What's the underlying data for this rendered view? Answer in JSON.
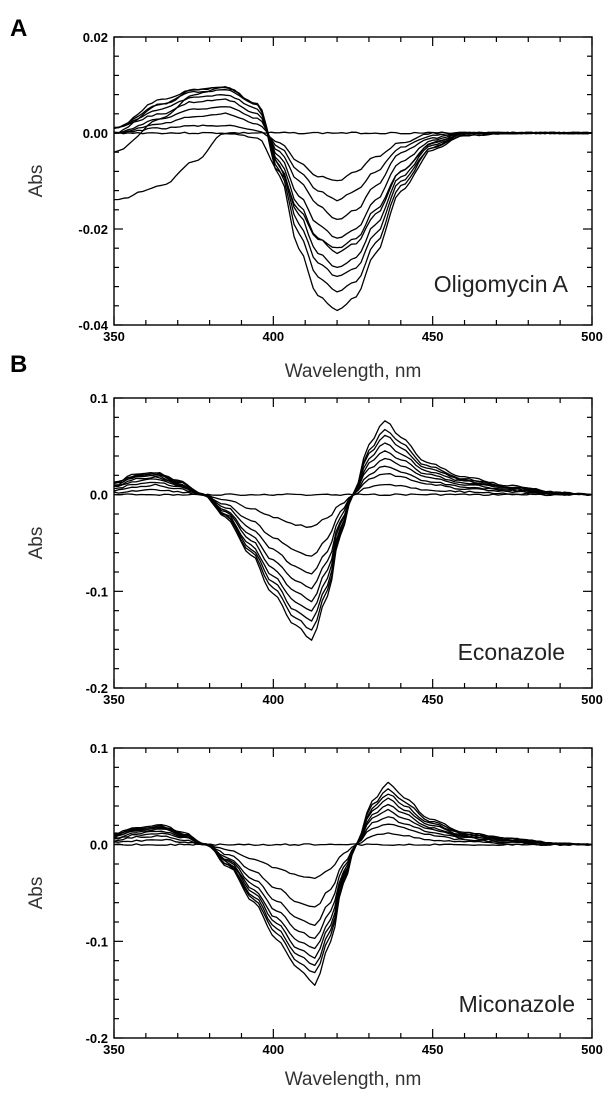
{
  "chart_data": [
    {
      "panel": "A",
      "type": "line",
      "annotation": "Oligomycin A",
      "xlabel": "Wavelength, nm",
      "ylabel": "Abs",
      "xlim": [
        350,
        500
      ],
      "ylim": [
        -0.04,
        0.02
      ],
      "xticks": [
        "350",
        "400",
        "450",
        "500"
      ],
      "yticks": [
        "0.02",
        "0.00",
        "-0.02",
        "-0.04"
      ],
      "x": [
        350,
        365,
        375,
        385,
        395,
        402,
        408,
        414,
        420,
        426,
        432,
        440,
        450,
        460,
        475,
        500
      ],
      "series": [
        {
          "values": [
            0.0,
            0.0,
            0.0,
            0.0,
            0.0,
            0.0,
            0.0,
            0.0,
            0.0,
            0.0,
            0.0,
            0.0,
            0.0,
            0.0,
            0.0,
            0.0
          ]
        },
        {
          "values": [
            0.0,
            0.001,
            0.0015,
            0.0015,
            0.0005,
            -0.002,
            -0.006,
            -0.009,
            -0.01,
            -0.008,
            -0.005,
            -0.002,
            0.0,
            0.0,
            0.0,
            0.0
          ]
        },
        {
          "values": [
            0.0,
            0.002,
            0.0035,
            0.004,
            0.002,
            -0.003,
            -0.008,
            -0.012,
            -0.014,
            -0.012,
            -0.008,
            -0.003,
            -0.0005,
            0.0,
            0.0,
            0.0
          ]
        },
        {
          "values": [
            0.0,
            0.003,
            0.005,
            0.0055,
            0.003,
            -0.004,
            -0.01,
            -0.015,
            -0.018,
            -0.016,
            -0.011,
            -0.004,
            -0.001,
            0.0,
            0.0,
            0.0
          ]
        },
        {
          "values": [
            0.001,
            0.004,
            0.0065,
            0.007,
            0.004,
            -0.005,
            -0.013,
            -0.019,
            -0.022,
            -0.02,
            -0.014,
            -0.006,
            -0.0015,
            0.0,
            0.0,
            0.0
          ]
        },
        {
          "values": [
            0.001,
            0.005,
            0.0075,
            0.008,
            0.005,
            -0.006,
            -0.015,
            -0.022,
            -0.025,
            -0.023,
            -0.017,
            -0.008,
            -0.002,
            0.0,
            0.0,
            0.0
          ]
        },
        {
          "values": [
            0.001,
            0.006,
            0.0085,
            0.009,
            0.006,
            -0.007,
            -0.017,
            -0.025,
            -0.028,
            -0.026,
            -0.019,
            -0.009,
            -0.0025,
            0.0,
            0.0,
            0.0
          ]
        },
        {
          "values": [
            0.001,
            0.007,
            0.009,
            0.0095,
            0.006,
            -0.007,
            -0.019,
            -0.027,
            -0.03,
            -0.028,
            -0.021,
            -0.01,
            -0.003,
            0.0,
            0.0,
            0.0
          ]
        },
        {
          "values": [
            0.0,
            0.006,
            0.009,
            0.0095,
            0.006,
            -0.008,
            -0.021,
            -0.03,
            -0.033,
            -0.031,
            -0.023,
            -0.011,
            -0.003,
            -0.0005,
            0.0,
            0.0
          ]
        },
        {
          "values": [
            -0.004,
            0.003,
            0.008,
            0.0095,
            0.006,
            -0.009,
            -0.024,
            -0.034,
            -0.037,
            -0.034,
            -0.025,
            -0.012,
            -0.0035,
            -0.0005,
            0.0,
            0.0
          ]
        },
        {
          "values": [
            -0.014,
            -0.011,
            -0.006,
            0.0,
            -0.001,
            -0.008,
            -0.016,
            -0.022,
            -0.024,
            -0.022,
            -0.016,
            -0.008,
            -0.002,
            0.0,
            0.0,
            0.0
          ]
        }
      ]
    },
    {
      "panel": "B",
      "type": "line",
      "annotation": "Econazole",
      "xlabel": "",
      "ylabel": "Abs",
      "xlim": [
        350,
        500
      ],
      "ylim": [
        -0.2,
        0.1
      ],
      "xticks": [
        "350",
        "400",
        "450",
        "500"
      ],
      "yticks": [
        "0.1",
        "0.0",
        "-0.1",
        "-0.2"
      ],
      "x": [
        350,
        357,
        363,
        370,
        378,
        385,
        393,
        400,
        407,
        412,
        417,
        421,
        425,
        430,
        435,
        440,
        448,
        460,
        475,
        490,
        500
      ],
      "series": [
        {
          "values": [
            0.0,
            0.0,
            0.0,
            0.0,
            0.0,
            0.0,
            0.0,
            0.0,
            0.0,
            0.0,
            0.0,
            0.0,
            0.0,
            0.0,
            0.0,
            0.0,
            0.0,
            0.0,
            0.0,
            0.0,
            0.0
          ]
        },
        {
          "values": [
            0.002,
            0.004,
            0.005,
            0.003,
            0.0,
            -0.005,
            -0.014,
            -0.023,
            -0.031,
            -0.034,
            -0.024,
            -0.01,
            0.0,
            0.008,
            0.011,
            0.009,
            0.005,
            0.003,
            0.001,
            0.0,
            0.0
          ]
        },
        {
          "values": [
            0.004,
            0.008,
            0.01,
            0.006,
            0.0,
            -0.01,
            -0.027,
            -0.044,
            -0.058,
            -0.064,
            -0.045,
            -0.018,
            0.0,
            0.016,
            0.022,
            0.018,
            0.011,
            0.006,
            0.003,
            0.001,
            0.0
          ]
        },
        {
          "values": [
            0.006,
            0.011,
            0.013,
            0.008,
            0.0,
            -0.013,
            -0.035,
            -0.057,
            -0.075,
            -0.082,
            -0.058,
            -0.023,
            0.0,
            0.021,
            0.03,
            0.024,
            0.014,
            0.008,
            0.004,
            0.001,
            0.0
          ]
        },
        {
          "values": [
            0.008,
            0.014,
            0.016,
            0.01,
            0.0,
            -0.016,
            -0.042,
            -0.068,
            -0.089,
            -0.097,
            -0.069,
            -0.028,
            0.0,
            0.027,
            0.038,
            0.03,
            0.018,
            0.01,
            0.005,
            0.001,
            0.0
          ]
        },
        {
          "values": [
            0.009,
            0.016,
            0.018,
            0.011,
            0.0,
            -0.018,
            -0.047,
            -0.077,
            -0.101,
            -0.11,
            -0.078,
            -0.031,
            0.0,
            0.032,
            0.046,
            0.036,
            0.021,
            0.012,
            0.006,
            0.002,
            0.0
          ]
        },
        {
          "values": [
            0.01,
            0.018,
            0.02,
            0.012,
            0.0,
            -0.02,
            -0.052,
            -0.085,
            -0.111,
            -0.121,
            -0.086,
            -0.034,
            0.0,
            0.037,
            0.054,
            0.042,
            0.024,
            0.014,
            0.007,
            0.002,
            0.0
          ]
        },
        {
          "values": [
            0.011,
            0.019,
            0.021,
            0.013,
            0.0,
            -0.021,
            -0.056,
            -0.091,
            -0.12,
            -0.131,
            -0.093,
            -0.037,
            0.0,
            0.042,
            0.062,
            0.048,
            0.027,
            0.015,
            0.007,
            0.002,
            0.0
          ]
        },
        {
          "values": [
            0.012,
            0.02,
            0.022,
            0.014,
            0.0,
            -0.022,
            -0.059,
            -0.097,
            -0.127,
            -0.14,
            -0.099,
            -0.04,
            0.0,
            0.046,
            0.068,
            0.053,
            0.03,
            0.016,
            0.008,
            0.002,
            0.0
          ]
        },
        {
          "values": [
            0.013,
            0.021,
            0.023,
            0.015,
            0.0,
            -0.023,
            -0.062,
            -0.103,
            -0.135,
            -0.15,
            -0.105,
            -0.042,
            0.0,
            0.051,
            0.077,
            0.06,
            0.033,
            0.018,
            0.009,
            0.002,
            0.0
          ]
        }
      ]
    },
    {
      "panel": "",
      "type": "line",
      "annotation": "Miconazole",
      "xlabel": "Wavelength, nm",
      "ylabel": "Abs",
      "xlim": [
        350,
        500
      ],
      "ylim": [
        -0.2,
        0.1
      ],
      "xticks": [
        "350",
        "400",
        "450",
        "500"
      ],
      "yticks": [
        "0.1",
        "0.0",
        "-0.1",
        "-0.2"
      ],
      "x": [
        350,
        357,
        365,
        372,
        379,
        386,
        394,
        401,
        408,
        413,
        418,
        422,
        426,
        431,
        436,
        441,
        449,
        460,
        475,
        490,
        500
      ],
      "series": [
        {
          "values": [
            0.0,
            0.0,
            0.0,
            0.0,
            0.0,
            0.0,
            0.0,
            0.0,
            0.0,
            0.0,
            0.0,
            0.0,
            0.0,
            0.0,
            0.0,
            0.0,
            0.0,
            0.0,
            0.0,
            0.0,
            0.0
          ]
        },
        {
          "values": [
            0.002,
            0.004,
            0.005,
            0.003,
            0.0,
            -0.006,
            -0.015,
            -0.024,
            -0.032,
            -0.035,
            -0.025,
            -0.01,
            0.0,
            0.009,
            0.012,
            0.009,
            0.005,
            0.003,
            0.001,
            0.0,
            0.0
          ]
        },
        {
          "values": [
            0.004,
            0.008,
            0.009,
            0.005,
            0.0,
            -0.011,
            -0.028,
            -0.045,
            -0.06,
            -0.065,
            -0.046,
            -0.019,
            0.0,
            0.017,
            0.022,
            0.017,
            0.01,
            0.005,
            0.002,
            0.001,
            0.0
          ]
        },
        {
          "values": [
            0.006,
            0.01,
            0.012,
            0.007,
            0.0,
            -0.014,
            -0.036,
            -0.058,
            -0.077,
            -0.083,
            -0.059,
            -0.024,
            0.0,
            0.022,
            0.029,
            0.022,
            0.013,
            0.007,
            0.003,
            0.001,
            0.0
          ]
        },
        {
          "values": [
            0.007,
            0.012,
            0.014,
            0.008,
            0.0,
            -0.016,
            -0.042,
            -0.068,
            -0.089,
            -0.097,
            -0.069,
            -0.028,
            0.0,
            0.027,
            0.036,
            0.027,
            0.016,
            0.008,
            0.004,
            0.001,
            0.0
          ]
        },
        {
          "values": [
            0.008,
            0.014,
            0.016,
            0.009,
            0.0,
            -0.018,
            -0.047,
            -0.076,
            -0.1,
            -0.108,
            -0.077,
            -0.031,
            0.0,
            0.031,
            0.042,
            0.032,
            0.018,
            0.009,
            0.004,
            0.001,
            0.0
          ]
        },
        {
          "values": [
            0.009,
            0.015,
            0.017,
            0.01,
            0.0,
            -0.019,
            -0.051,
            -0.082,
            -0.108,
            -0.117,
            -0.083,
            -0.033,
            0.0,
            0.035,
            0.048,
            0.036,
            0.02,
            0.01,
            0.005,
            0.001,
            0.0
          ]
        },
        {
          "values": [
            0.01,
            0.016,
            0.018,
            0.011,
            0.0,
            -0.021,
            -0.054,
            -0.087,
            -0.115,
            -0.125,
            -0.089,
            -0.036,
            0.0,
            0.038,
            0.053,
            0.04,
            0.022,
            0.011,
            0.005,
            0.001,
            0.0
          ]
        },
        {
          "values": [
            0.011,
            0.017,
            0.019,
            0.011,
            0.0,
            -0.022,
            -0.057,
            -0.092,
            -0.121,
            -0.133,
            -0.094,
            -0.038,
            0.0,
            0.041,
            0.058,
            0.044,
            0.024,
            0.012,
            0.006,
            0.001,
            0.0
          ]
        },
        {
          "values": [
            0.012,
            0.018,
            0.02,
            0.012,
            0.0,
            -0.023,
            -0.06,
            -0.098,
            -0.128,
            -0.145,
            -0.1,
            -0.04,
            0.0,
            0.045,
            0.064,
            0.049,
            0.026,
            0.013,
            0.006,
            0.001,
            0.0
          ]
        }
      ]
    }
  ]
}
